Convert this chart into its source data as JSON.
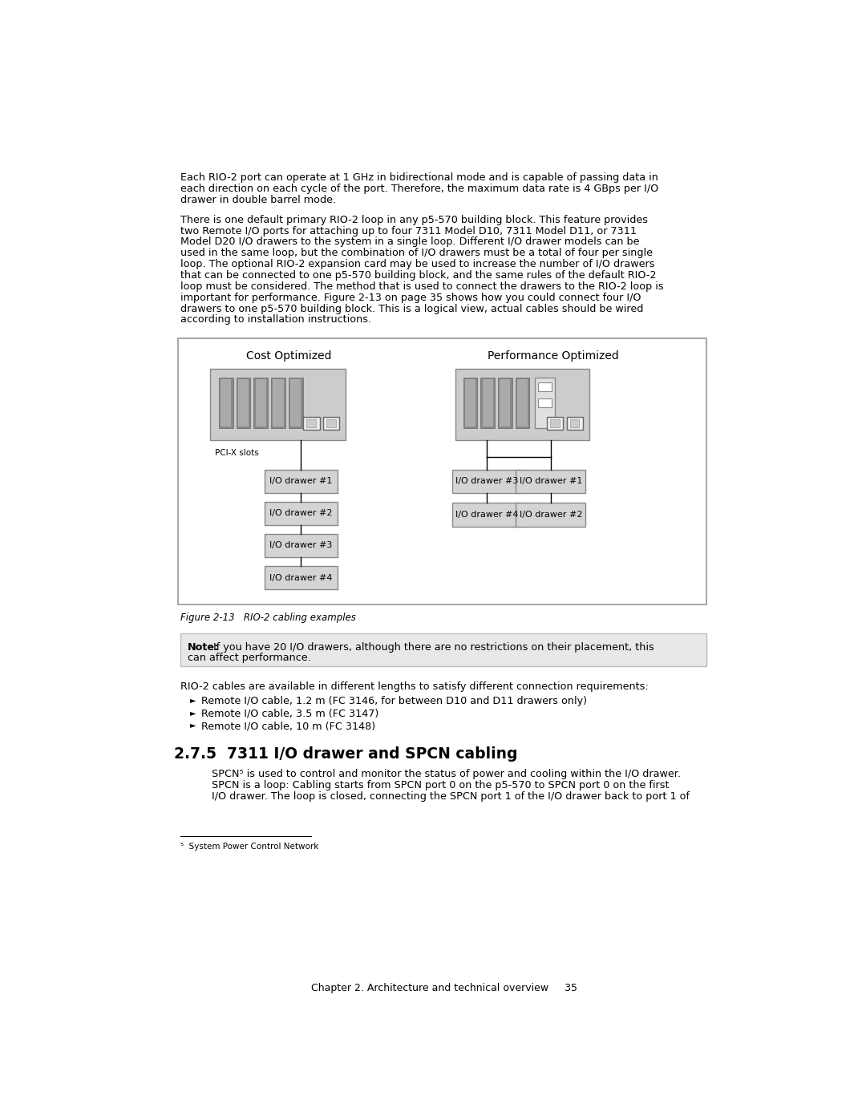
{
  "page_bg": "#ffffff",
  "text_color": "#000000",
  "para1": "Each RIO-2 port can operate at 1 GHz in bidirectional mode and is capable of passing data in\neach direction on each cycle of the port. Therefore, the maximum data rate is 4 GBps per I/O\ndrawer in double barrel mode.",
  "para2": "There is one default primary RIO-2 loop in any p5-570 building block. This feature provides\ntwo Remote I/O ports for attaching up to four 7311 Model D10, 7311 Model D11, or 7311\nModel D20 I/O drawers to the system in a single loop. Different I/O drawer models can be\nused in the same loop, but the combination of I/O drawers must be a total of four per single\nloop. The optional RIO-2 expansion card may be used to increase the number of I/O drawers\nthat can be connected to one p5-570 building block, and the same rules of the default RIO-2\nloop must be considered. The method that is used to connect the drawers to the RIO-2 loop is\nimportant for performance. Figure 2-13 on page 35 shows how you could connect four I/O\ndrawers to one p5-570 building block. This is a logical view, actual cables should be wired\naccording to installation instructions.",
  "fig_caption": "Figure 2-13   RIO-2 cabling examples",
  "note_text": "Note: If you have 20 I/O drawers, although there are no restrictions on their placement, this\ncan affect performance.",
  "note_bg": "#e8e8e8",
  "para3": "RIO-2 cables are available in different lengths to satisfy different connection requirements:",
  "bullets": [
    "Remote I/O cable, 1.2 m (FC 3146, for between D10 and D11 drawers only)",
    "Remote I/O cable, 3.5 m (FC 3147)",
    "Remote I/O cable, 10 m (FC 3148)"
  ],
  "section_title": "2.7.5  7311 I/O drawer and SPCN cabling",
  "para4": "SPCN⁵ is used to control and monitor the status of power and cooling within the I/O drawer.\nSPCN is a loop: Cabling starts from SPCN port 0 on the p5-570 to SPCN port 0 on the first\nI/O drawer. The loop is closed, connecting the SPCN port 1 of the I/O drawer back to port 1 of",
  "footnote": "⁵  System Power Control Network",
  "footer": "Chapter 2. Architecture and technical overview     35",
  "diagram": {
    "cost_title": "Cost Optimized",
    "perf_title": "Performance Optimized",
    "pcix_label": "PCI-X slots",
    "cost_drawers": [
      "I/O drawer #1",
      "I/O drawer #2",
      "I/O drawer #3",
      "I/O drawer #4"
    ],
    "perf_left_drawers": [
      "I/O drawer #3",
      "I/O drawer #4"
    ],
    "perf_right_drawers": [
      "I/O drawer #1",
      "I/O drawer #2"
    ]
  }
}
